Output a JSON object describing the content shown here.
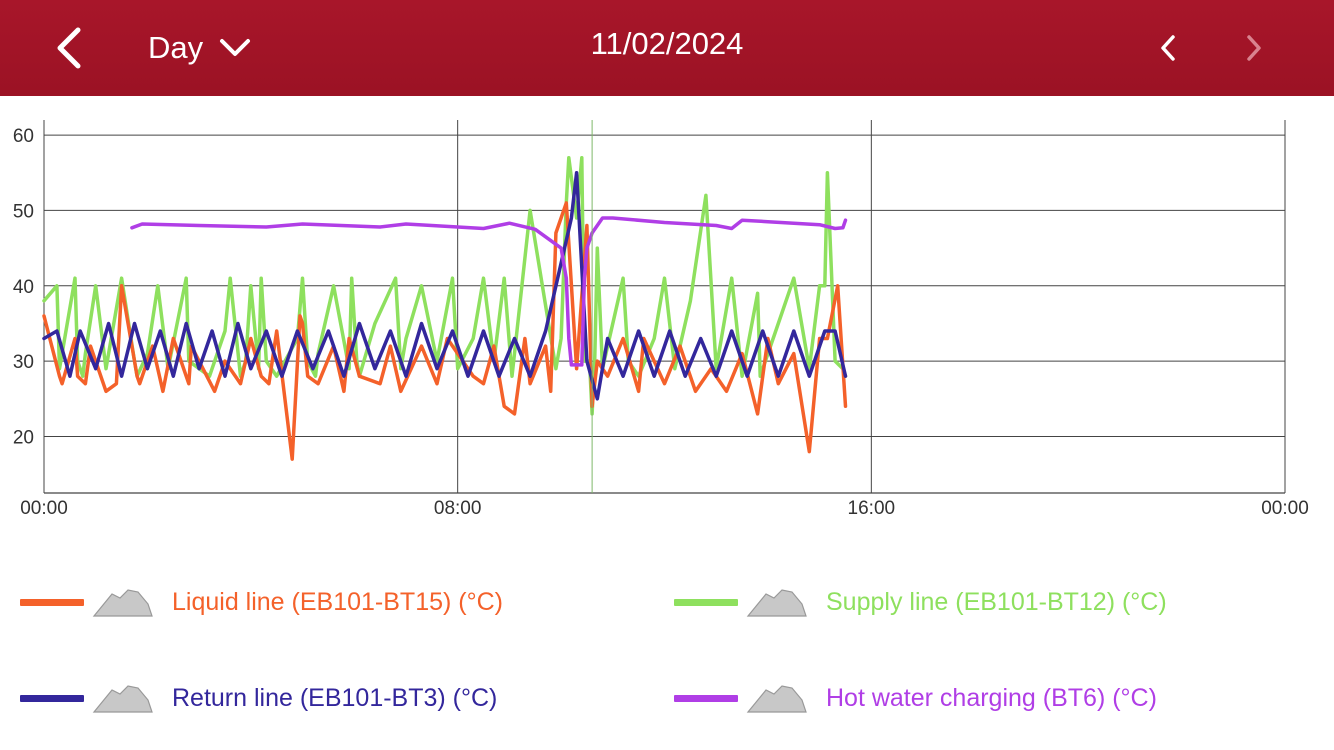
{
  "header": {
    "range_label": "Day",
    "date": "11/02/2024",
    "back_icon": "chevron-left-icon",
    "range_icon": "chevron-down-icon",
    "prev_icon": "chevron-left-icon",
    "next_icon": "chevron-right-icon"
  },
  "legend": [
    {
      "label": "Liquid line (EB101-BT15) (°C)",
      "color": "#f4612a",
      "toggle_icon": "mountain-icon"
    },
    {
      "label": "Supply line (EB101-BT12) (°C)",
      "color": "#8ee05e",
      "toggle_icon": "mountain-icon"
    },
    {
      "label": "Return line (EB101-BT3) (°C)",
      "color": "#33279c",
      "toggle_icon": "mountain-icon"
    },
    {
      "label": "Hot water charging (BT6) (°C)",
      "color": "#b03ee6",
      "toggle_icon": "mountain-icon"
    }
  ],
  "chart_data": {
    "type": "line",
    "x_unit": "hour",
    "xlim": [
      0,
      24
    ],
    "ylim": [
      12.5,
      62
    ],
    "x_ticks": [
      0,
      8,
      16,
      24
    ],
    "x_tick_labels": [
      "00:00",
      "08:00",
      "16:00",
      "00:00"
    ],
    "y_ticks": [
      20,
      30,
      40,
      50,
      60
    ],
    "y_tick_labels": [
      "20",
      "30",
      "40",
      "50",
      "60"
    ],
    "grid": true,
    "legend_position": "bottom",
    "cursor_x": 10.6,
    "series": [
      {
        "name": "Supply line (EB101-BT12) (°C)",
        "color": "#8ee05e",
        "x": [
          0,
          0.25,
          0.3,
          0.6,
          0.65,
          0.75,
          0.8,
          1.0,
          1.2,
          1.5,
          1.75,
          1.8,
          2.0,
          2.2,
          2.4,
          2.75,
          2.8,
          3.2,
          3.5,
          3.6,
          3.8,
          3.9,
          4.0,
          4.15,
          4.2,
          4.3,
          4.5,
          4.9,
          5.0,
          5.1,
          5.25,
          5.3,
          5.6,
          5.9,
          5.95,
          6.05,
          6.1,
          6.4,
          6.8,
          6.9,
          7.0,
          7.3,
          7.6,
          7.9,
          8.0,
          8.3,
          8.5,
          8.7,
          8.9,
          9.05,
          9.1,
          9.4,
          9.9,
          10.0,
          10.1,
          10.15,
          10.3,
          10.4,
          10.45,
          10.55,
          10.6,
          10.65,
          10.7,
          10.8,
          11.2,
          11.3,
          11.5,
          11.8,
          12.0,
          12.2,
          12.5,
          12.8,
          13.0,
          13.3,
          13.5,
          13.8,
          13.85,
          14.2,
          14.5,
          14.8,
          15.0,
          15.1,
          15.15,
          15.3,
          15.45,
          15.5
        ],
        "y": [
          38,
          40,
          29,
          41,
          30,
          28,
          31,
          40,
          29,
          41,
          30,
          28,
          31,
          40,
          29,
          41,
          30,
          28,
          34,
          41,
          28,
          30,
          40,
          29,
          41,
          30,
          28,
          33,
          41,
          30,
          28,
          31,
          40,
          29,
          41,
          30,
          28,
          35,
          41,
          29,
          33,
          40,
          30,
          41,
          29,
          33,
          41,
          30,
          41,
          28,
          31,
          50,
          29,
          33,
          51,
          57,
          49,
          57,
          30,
          30,
          23,
          30,
          45,
          29,
          41,
          30,
          28,
          33,
          41,
          29,
          38,
          52,
          29,
          41,
          28,
          39,
          28,
          35,
          41,
          29,
          40,
          40,
          55,
          30,
          29,
          28
        ]
      },
      {
        "name": "Liquid line (EB101-BT15) (°C)",
        "color": "#f4612a",
        "x": [
          0,
          0.3,
          0.35,
          0.6,
          0.65,
          0.8,
          0.9,
          1.2,
          1.4,
          1.5,
          1.8,
          1.85,
          2.1,
          2.3,
          2.5,
          2.8,
          2.85,
          3.3,
          3.5,
          3.8,
          4.0,
          4.2,
          4.35,
          4.5,
          4.8,
          4.95,
          5.0,
          5.1,
          5.3,
          5.6,
          5.8,
          5.9,
          6.1,
          6.5,
          6.7,
          6.9,
          7.3,
          7.6,
          7.8,
          8.3,
          8.5,
          8.7,
          8.9,
          9.1,
          9.3,
          9.4,
          9.7,
          9.8,
          9.9,
          10.1,
          10.3,
          10.5,
          10.6,
          10.7,
          10.9,
          11.2,
          11.5,
          11.6,
          12.0,
          12.3,
          12.6,
          12.9,
          13.2,
          13.5,
          13.8,
          14.0,
          14.2,
          14.5,
          14.8,
          15.0,
          15.15,
          15.35,
          15.5
        ],
        "y": [
          36,
          28,
          27,
          33,
          28,
          27,
          32,
          26,
          27,
          40,
          28,
          27,
          32,
          26,
          33,
          27,
          32,
          26,
          30,
          27,
          33,
          28,
          27,
          34,
          17,
          36,
          35,
          28,
          27,
          32,
          26,
          33,
          28,
          27,
          32,
          26,
          32,
          27,
          33,
          28,
          27,
          32,
          24,
          23,
          33,
          27,
          32,
          26,
          47,
          51,
          29,
          48,
          24,
          30,
          28,
          33,
          26,
          33,
          27,
          32,
          26,
          29,
          26,
          31,
          23,
          33,
          27,
          31,
          18,
          33,
          33,
          40,
          24
        ]
      },
      {
        "name": "Return line (EB101-BT3) (°C)",
        "color": "#33279c",
        "x": [
          0,
          0.25,
          0.5,
          0.7,
          1.0,
          1.25,
          1.5,
          1.75,
          2.0,
          2.25,
          2.5,
          2.75,
          3.0,
          3.25,
          3.5,
          3.75,
          4.0,
          4.3,
          4.6,
          4.9,
          5.2,
          5.5,
          5.8,
          6.1,
          6.4,
          6.7,
          7.0,
          7.3,
          7.6,
          7.9,
          8.2,
          8.5,
          8.8,
          9.1,
          9.4,
          9.7,
          10.0,
          10.2,
          10.3,
          10.5,
          10.7,
          10.9,
          11.2,
          11.5,
          11.8,
          12.1,
          12.4,
          12.7,
          13.0,
          13.3,
          13.6,
          13.9,
          14.2,
          14.5,
          14.8,
          15.1,
          15.3,
          15.5
        ],
        "y": [
          33,
          34,
          28,
          34,
          29,
          35,
          28,
          35,
          29,
          34,
          28,
          35,
          29,
          34,
          28,
          35,
          29,
          34,
          28,
          34,
          29,
          34,
          28,
          35,
          29,
          34,
          28,
          35,
          29,
          34,
          28,
          34,
          28,
          33,
          28,
          34,
          43,
          49,
          55,
          30,
          25,
          33,
          28,
          34,
          28,
          34,
          28,
          33,
          28,
          34,
          28,
          34,
          28,
          34,
          28,
          34,
          34,
          28
        ]
      },
      {
        "name": "Hot water charging (BT6) (°C)",
        "color": "#b03ee6",
        "x": [
          1.7,
          1.9,
          3.0,
          4.3,
          5.0,
          6.5,
          7.0,
          8.0,
          8.5,
          9.0,
          9.5,
          10.0,
          10.1,
          10.15,
          10.2,
          10.25,
          10.4,
          10.45,
          10.5,
          10.6,
          10.8,
          11.0,
          12.0,
          13.0,
          13.3,
          13.5,
          14.0,
          14.5,
          15.0,
          15.3,
          15.45,
          15.5
        ],
        "y": [
          47.7,
          48.2,
          48,
          47.8,
          48.2,
          47.8,
          48.2,
          47.8,
          47.6,
          48.3,
          47.5,
          45,
          41,
          33,
          29.5,
          29.5,
          29.5,
          41,
          45,
          47,
          49,
          49,
          48.4,
          48,
          47.6,
          48.7,
          48.5,
          48.3,
          48.1,
          47.6,
          47.7,
          48.7
        ]
      }
    ]
  }
}
